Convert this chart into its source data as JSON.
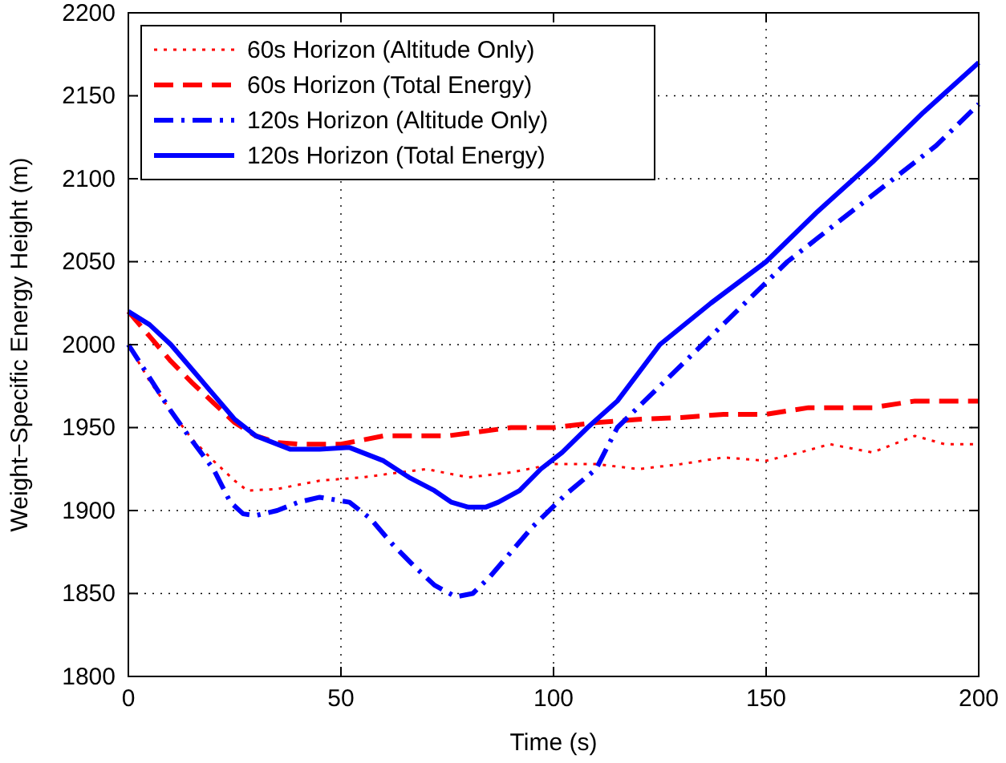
{
  "chart_data": {
    "type": "line",
    "xlabel": "Time (s)",
    "ylabel": "Weight−Specific Energy Height (m)",
    "xlim": [
      0,
      200
    ],
    "ylim": [
      1800,
      2200
    ],
    "xticks": [
      0,
      50,
      100,
      150,
      200
    ],
    "yticks": [
      1800,
      1850,
      1900,
      1950,
      2000,
      2050,
      2100,
      2150,
      2200
    ],
    "grid": true,
    "legend": "top left",
    "marker": "none",
    "series": [
      {
        "name": "60s Horizon (Altitude Only)",
        "color": "#ff0000",
        "line_style": "dotted",
        "x": [
          0,
          5,
          10,
          15,
          20,
          25,
          28,
          35,
          45,
          55,
          70,
          80,
          90,
          100,
          110,
          120,
          130,
          140,
          150,
          158,
          165,
          175,
          185,
          192,
          200
        ],
        "values": [
          2000,
          1978,
          1960,
          1943,
          1930,
          1918,
          1912,
          1913,
          1918,
          1920,
          1925,
          1920,
          1923,
          1928,
          1928,
          1925,
          1928,
          1932,
          1930,
          1935,
          1940,
          1935,
          1945,
          1940,
          1940
        ]
      },
      {
        "name": "60s Horizon (Total Energy)",
        "color": "#ff0000",
        "line_style": "dashed",
        "x": [
          0,
          5,
          10,
          15,
          20,
          25,
          30,
          35,
          40,
          50,
          60,
          75,
          90,
          100,
          110,
          120,
          130,
          140,
          150,
          160,
          175,
          185,
          200
        ],
        "values": [
          2020,
          2005,
          1990,
          1977,
          1965,
          1953,
          1945,
          1941,
          1940,
          1940,
          1945,
          1945,
          1950,
          1950,
          1953,
          1955,
          1956,
          1958,
          1958,
          1962,
          1962,
          1966,
          1966
        ]
      },
      {
        "name": "120s Horizon (Altitude Only)",
        "color": "#0000ff",
        "line_style": "dashdot",
        "x": [
          0,
          5,
          10,
          15,
          20,
          24,
          27,
          30,
          35,
          40,
          45,
          52,
          57,
          62,
          67,
          72,
          77,
          81,
          85,
          90,
          95,
          103,
          110,
          115,
          125,
          135,
          145,
          155,
          165,
          180,
          190,
          200
        ],
        "values": [
          2000,
          1980,
          1960,
          1942,
          1925,
          1905,
          1898,
          1897,
          1900,
          1905,
          1908,
          1905,
          1895,
          1880,
          1867,
          1855,
          1848,
          1850,
          1860,
          1875,
          1890,
          1910,
          1925,
          1950,
          1975,
          2000,
          2025,
          2050,
          2070,
          2100,
          2120,
          2145
        ]
      },
      {
        "name": "120s Horizon (Total Energy)",
        "color": "#0000ff",
        "line_style": "solid",
        "x": [
          0,
          5,
          10,
          15,
          20,
          25,
          30,
          38,
          45,
          52,
          60,
          66,
          72,
          76,
          80,
          84,
          87,
          92,
          97,
          102,
          108,
          115,
          125,
          137,
          150,
          162,
          175,
          187,
          200
        ],
        "values": [
          2020,
          2012,
          2000,
          1985,
          1970,
          1955,
          1945,
          1937,
          1937,
          1938,
          1930,
          1920,
          1912,
          1905,
          1902,
          1902,
          1905,
          1912,
          1925,
          1935,
          1950,
          1966,
          2000,
          2025,
          2050,
          2080,
          2110,
          2140,
          2170
        ]
      }
    ]
  }
}
